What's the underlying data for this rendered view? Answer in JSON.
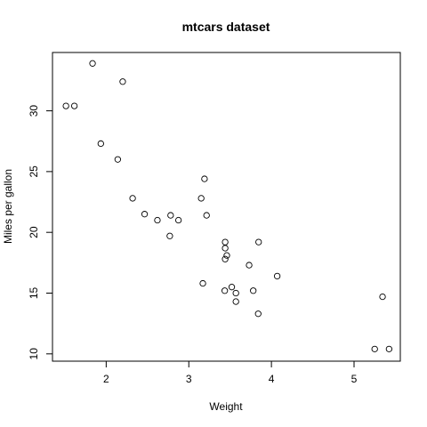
{
  "chart_data": {
    "type": "scatter",
    "title": "mtcars dataset",
    "xlabel": "Weight",
    "ylabel": "Miles per gallon",
    "xlim": [
      1.35,
      5.56
    ],
    "ylim": [
      9.4,
      34.8
    ],
    "xticks": [
      2,
      3,
      4,
      5
    ],
    "yticks": [
      10,
      15,
      20,
      25,
      30
    ],
    "grid": false,
    "legend": "none",
    "points": [
      {
        "x": 2.62,
        "y": 21.0
      },
      {
        "x": 2.875,
        "y": 21.0
      },
      {
        "x": 2.32,
        "y": 22.8
      },
      {
        "x": 3.215,
        "y": 21.4
      },
      {
        "x": 3.44,
        "y": 18.7
      },
      {
        "x": 3.46,
        "y": 18.1
      },
      {
        "x": 3.57,
        "y": 14.3
      },
      {
        "x": 3.19,
        "y": 24.4
      },
      {
        "x": 3.15,
        "y": 22.8
      },
      {
        "x": 3.44,
        "y": 19.2
      },
      {
        "x": 3.44,
        "y": 17.8
      },
      {
        "x": 4.07,
        "y": 16.4
      },
      {
        "x": 3.73,
        "y": 17.3
      },
      {
        "x": 3.78,
        "y": 15.2
      },
      {
        "x": 5.25,
        "y": 10.4
      },
      {
        "x": 5.424,
        "y": 10.4
      },
      {
        "x": 5.345,
        "y": 14.7
      },
      {
        "x": 2.2,
        "y": 32.4
      },
      {
        "x": 1.615,
        "y": 30.4
      },
      {
        "x": 1.835,
        "y": 33.9
      },
      {
        "x": 2.465,
        "y": 21.5
      },
      {
        "x": 3.52,
        "y": 15.5
      },
      {
        "x": 3.435,
        "y": 15.2
      },
      {
        "x": 3.84,
        "y": 13.3
      },
      {
        "x": 3.845,
        "y": 19.2
      },
      {
        "x": 1.935,
        "y": 27.3
      },
      {
        "x": 2.14,
        "y": 26.0
      },
      {
        "x": 1.513,
        "y": 30.4
      },
      {
        "x": 3.17,
        "y": 15.8
      },
      {
        "x": 2.77,
        "y": 19.7
      },
      {
        "x": 3.57,
        "y": 15.0
      },
      {
        "x": 2.78,
        "y": 21.4
      }
    ]
  }
}
